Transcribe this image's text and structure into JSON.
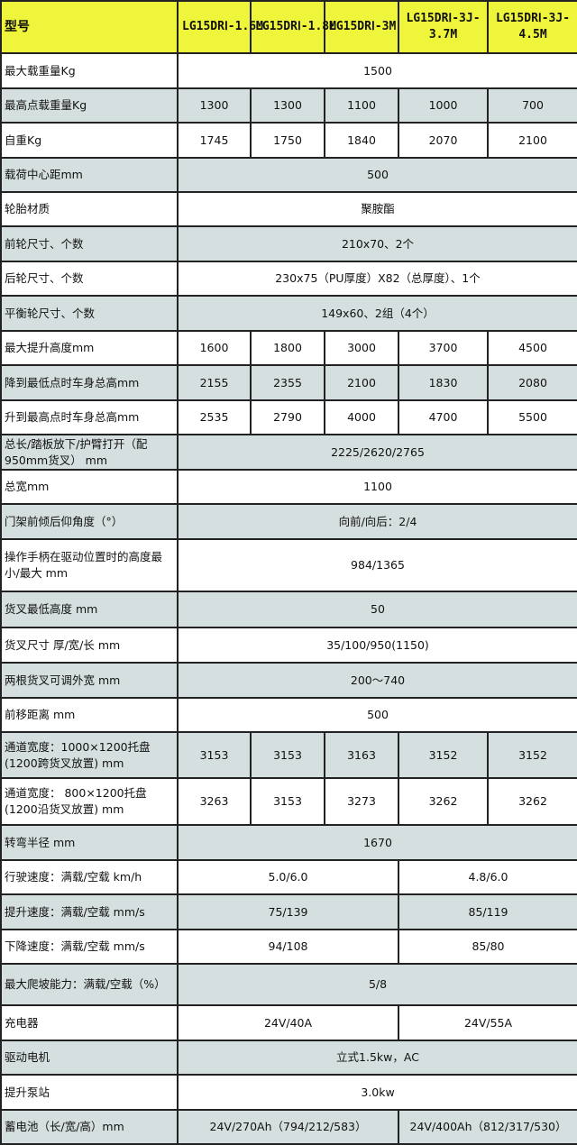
{
  "table": {
    "header": {
      "label": "型号",
      "models": [
        "LG15DRⅠ-1.6M",
        "LG15DRⅠ-1.8M",
        "LG15DRⅠ-3M",
        "LG15DRⅠ-3J-3.7M",
        "LG15DRⅠ-3J-4.5M"
      ]
    },
    "colors": {
      "header_bg": "#eef53a",
      "stripe_bg": "#d6dfdf",
      "border": "#222222"
    },
    "rows": [
      {
        "label": "最大载重量Kg",
        "cells": [
          {
            "text": "1500",
            "span": 5
          }
        ]
      },
      {
        "label": "最高点载重量Kg",
        "cells": [
          {
            "text": "1300",
            "span": 1
          },
          {
            "text": "1300",
            "span": 1
          },
          {
            "text": "1100",
            "span": 1
          },
          {
            "text": "1000",
            "span": 1
          },
          {
            "text": "700",
            "span": 1
          }
        ]
      },
      {
        "label": "自重Kg",
        "cells": [
          {
            "text": "1745",
            "span": 1
          },
          {
            "text": "1750",
            "span": 1
          },
          {
            "text": "1840",
            "span": 1
          },
          {
            "text": "2070",
            "span": 1
          },
          {
            "text": "2100",
            "span": 1
          }
        ]
      },
      {
        "label": "载荷中心距mm",
        "cells": [
          {
            "text": "500",
            "span": 5
          }
        ]
      },
      {
        "label": "轮胎材质",
        "cells": [
          {
            "text": "聚胺酯",
            "span": 5
          }
        ]
      },
      {
        "label": "前轮尺寸、个数",
        "cells": [
          {
            "text": "210x70、2个",
            "span": 5
          }
        ]
      },
      {
        "label": "后轮尺寸、个数",
        "cells": [
          {
            "text": "230x75（PU厚度）X82（总厚度）、1个",
            "span": 5
          }
        ]
      },
      {
        "label": "平衡轮尺寸、个数",
        "cells": [
          {
            "text": "149x60、2组（4个）",
            "span": 5
          }
        ]
      },
      {
        "label": "最大提升高度mm",
        "cells": [
          {
            "text": "1600",
            "span": 1
          },
          {
            "text": "1800",
            "span": 1
          },
          {
            "text": "3000",
            "span": 1
          },
          {
            "text": "3700",
            "span": 1
          },
          {
            "text": "4500",
            "span": 1
          }
        ]
      },
      {
        "label": "降到最低点时车身总高mm",
        "cells": [
          {
            "text": "2155",
            "span": 1
          },
          {
            "text": "2355",
            "span": 1
          },
          {
            "text": "2100",
            "span": 1
          },
          {
            "text": "1830",
            "span": 1
          },
          {
            "text": "2080",
            "span": 1
          }
        ]
      },
      {
        "label": "升到最高点时车身总高mm",
        "cells": [
          {
            "text": "2535",
            "span": 1
          },
          {
            "text": "2790",
            "span": 1
          },
          {
            "text": "4000",
            "span": 1
          },
          {
            "text": "4700",
            "span": 1
          },
          {
            "text": "5500",
            "span": 1
          }
        ]
      },
      {
        "label": "总长/踏板放下/护臂打开（配950mm货叉） mm",
        "cells": [
          {
            "text": "2225/2620/2765",
            "span": 5
          }
        ]
      },
      {
        "label": "总宽mm",
        "cells": [
          {
            "text": "1100",
            "span": 5
          }
        ]
      },
      {
        "label": "门架前倾后仰角度（°）",
        "cells": [
          {
            "text": "向前/向后：2/4",
            "span": 5
          }
        ]
      },
      {
        "label": "操作手柄在驱动位置时的高度最小/最大 mm",
        "cells": [
          {
            "text": "984/1365",
            "span": 5
          }
        ]
      },
      {
        "label": "货叉最低高度 mm",
        "cells": [
          {
            "text": "50",
            "span": 5
          }
        ]
      },
      {
        "label": "货叉尺寸  厚/宽/长  mm",
        "cells": [
          {
            "text": "35/100/950(1150)",
            "span": 5
          }
        ]
      },
      {
        "label": "两根货叉可调外宽  mm",
        "cells": [
          {
            "text": "200～740",
            "span": 5
          }
        ]
      },
      {
        "label": "前移距离  mm",
        "cells": [
          {
            "text": "500",
            "span": 5
          }
        ]
      },
      {
        "label": "通道宽度：1000×1200托盘(1200跨货叉放置)  mm",
        "cells": [
          {
            "text": "3153",
            "span": 1
          },
          {
            "text": "3153",
            "span": 1
          },
          {
            "text": "3163",
            "span": 1
          },
          {
            "text": "3152",
            "span": 1
          },
          {
            "text": "3152",
            "span": 1
          }
        ]
      },
      {
        "label": "通道宽度： 800×1200托盘(1200沿货叉放置)  mm",
        "cells": [
          {
            "text": "3263",
            "span": 1
          },
          {
            "text": "3153",
            "span": 1
          },
          {
            "text": "3273",
            "span": 1
          },
          {
            "text": "3262",
            "span": 1
          },
          {
            "text": "3262",
            "span": 1
          }
        ]
      },
      {
        "label": "转弯半径  mm",
        "cells": [
          {
            "text": "1670",
            "span": 5
          }
        ]
      },
      {
        "label": "行驶速度：满载/空载 km/h",
        "cells": [
          {
            "text": "5.0/6.0",
            "span": 3
          },
          {
            "text": "4.8/6.0",
            "span": 2
          }
        ]
      },
      {
        "label": "提升速度：满载/空载 mm/s",
        "cells": [
          {
            "text": "75/139",
            "span": 3
          },
          {
            "text": "85/119",
            "span": 2
          }
        ]
      },
      {
        "label": "下降速度：满载/空载 mm/s",
        "cells": [
          {
            "text": "94/108",
            "span": 3
          },
          {
            "text": "85/80",
            "span": 2
          }
        ]
      },
      {
        "label": "最大爬坡能力：满载/空载（%）",
        "cells": [
          {
            "text": "5/8",
            "span": 5
          }
        ]
      },
      {
        "label": "充电器",
        "cells": [
          {
            "text": "24V/40A",
            "span": 3
          },
          {
            "text": "24V/55A",
            "span": 2
          }
        ]
      },
      {
        "label": "驱动电机",
        "cells": [
          {
            "text": "立式1.5kw，AC",
            "span": 5
          }
        ]
      },
      {
        "label": "提升泵站",
        "cells": [
          {
            "text": "3.0kw",
            "span": 5
          }
        ]
      },
      {
        "label": "蓄电池（长/宽/高）mm",
        "cells": [
          {
            "text": "24V/270Ah（794/212/583）",
            "span": 3
          },
          {
            "text": "24V/400Ah（812/317/530）",
            "span": 2
          }
        ]
      }
    ]
  }
}
